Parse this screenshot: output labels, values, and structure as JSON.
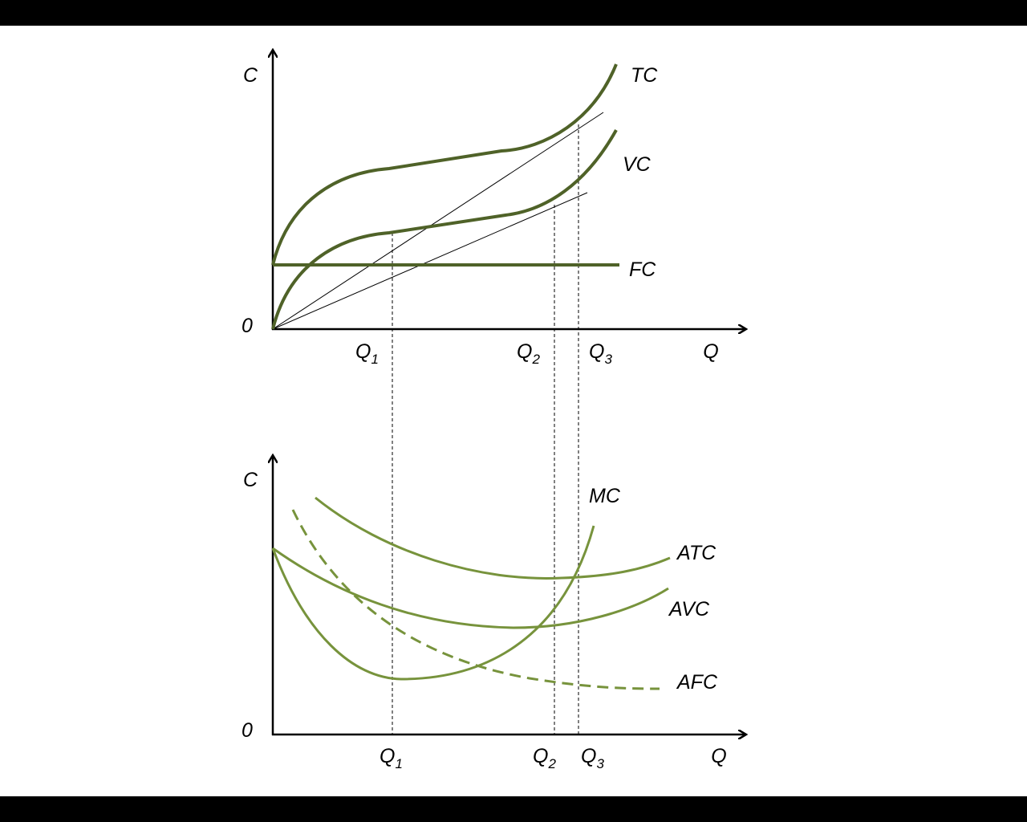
{
  "top": {
    "y_label": "C",
    "origin": "0",
    "x_ticks": [
      {
        "base": "Q",
        "sub": "1"
      },
      {
        "base": "Q",
        "sub": "2"
      },
      {
        "base": "Q",
        "sub": "3"
      }
    ],
    "x_label": "Q",
    "curves": [
      "TC",
      "VC",
      "FC"
    ]
  },
  "bottom": {
    "y_label": "C",
    "origin": "0",
    "x_ticks": [
      {
        "base": "Q",
        "sub": "1"
      },
      {
        "base": "Q",
        "sub": "2"
      },
      {
        "base": "Q",
        "sub": "3"
      }
    ],
    "x_label": "Q",
    "curves": [
      "MC",
      "ATC",
      "AVC",
      "AFC"
    ]
  }
}
